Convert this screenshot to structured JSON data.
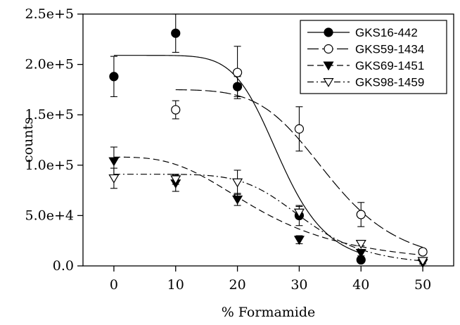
{
  "chart_data": {
    "type": "scatter",
    "xlabel": "% Formamide",
    "ylabel": "counts",
    "xlim": [
      -5,
      55
    ],
    "ylim": [
      0,
      250000
    ],
    "x_ticks": [
      0,
      10,
      20,
      30,
      40,
      50
    ],
    "x_tick_labels": [
      "0",
      "10",
      "20",
      "30",
      "40",
      "50"
    ],
    "y_ticks": [
      0,
      50000,
      100000,
      150000,
      200000,
      250000
    ],
    "y_tick_labels": [
      "0.0",
      "5.0e+4",
      "1.0e+5",
      "1.5e+5",
      "2.0e+5",
      "2.5e+5"
    ],
    "grid": false,
    "legend_position": "top-right",
    "series": [
      {
        "name": "GKS16-442",
        "marker": "filled-circle",
        "line_style": "solid",
        "x": [
          0,
          10,
          20,
          30,
          40
        ],
        "y": [
          188000,
          231000,
          178000,
          50000,
          6000
        ],
        "err": [
          20000,
          19000,
          10000,
          10000,
          2000
        ],
        "fit": {
          "top": 209000,
          "bottom": 0,
          "x50": 27,
          "slope": 7
        }
      },
      {
        "name": "GKS59-1434",
        "marker": "open-circle",
        "line_style": "long-dash",
        "x": [
          10,
          20,
          30,
          40,
          50
        ],
        "y": [
          155000,
          192000,
          136000,
          51000,
          14000
        ],
        "err": [
          9000,
          26000,
          22000,
          12000,
          3000
        ],
        "fit": {
          "top": 175000,
          "bottom": 0,
          "x50": 35,
          "slope": 6
        }
      },
      {
        "name": "GKS69-1451",
        "marker": "filled-triangle-down",
        "line_style": "dash",
        "x": [
          0,
          10,
          20,
          30,
          40,
          50
        ],
        "y": [
          104000,
          82000,
          66000,
          26000,
          13000,
          3000
        ],
        "err": [
          14000,
          8000,
          6000,
          4000,
          3000,
          1000
        ],
        "fit": {
          "top": 108000,
          "bottom": 0,
          "x50": 24,
          "slope": 3
        }
      },
      {
        "name": "GKS98-1459",
        "marker": "open-triangle-down",
        "line_style": "dash-dot",
        "x": [
          0,
          10,
          20,
          30,
          40,
          50
        ],
        "y": [
          87000,
          86000,
          83000,
          53000,
          22000,
          5000
        ],
        "err": [
          10000,
          5000,
          12000,
          6000,
          2000,
          1000
        ],
        "fit": {
          "top": 91000,
          "bottom": 0,
          "x50": 31,
          "slope": 6
        }
      }
    ]
  }
}
